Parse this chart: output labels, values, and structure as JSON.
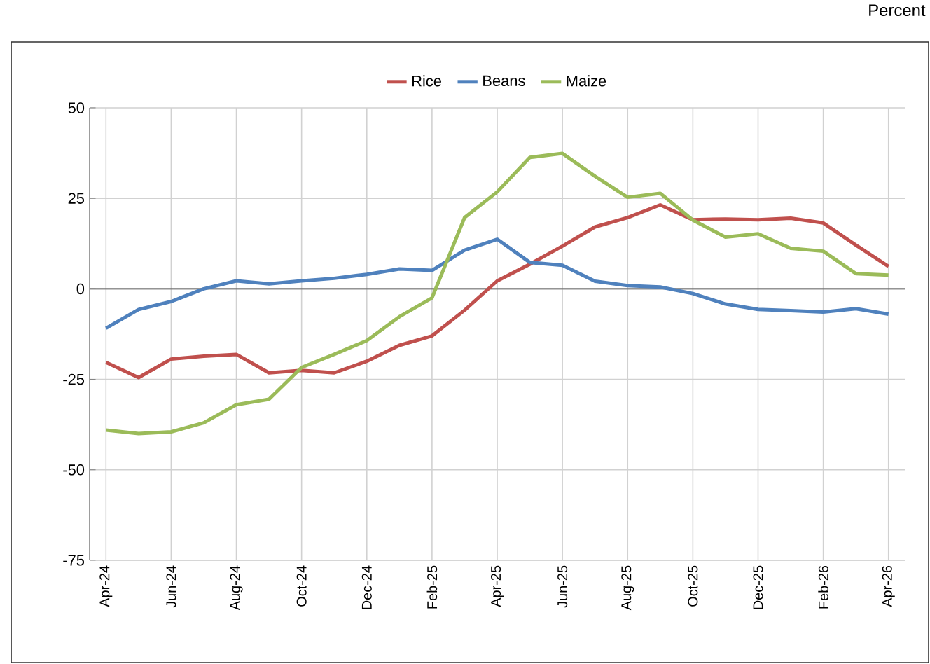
{
  "chart_data": {
    "type": "line",
    "annotations": [
      "Percent"
    ],
    "categories": [
      "Apr-24",
      null,
      "Jun-24",
      null,
      "Aug-24",
      null,
      "Oct-24",
      null,
      "Dec-24",
      null,
      "Feb-25",
      null,
      "Apr-25",
      null,
      "Jun-25",
      null,
      "Aug-25",
      null,
      "Oct-25",
      null,
      "Dec-25",
      null,
      "Feb-26",
      null,
      "Apr-26"
    ],
    "series": [
      {
        "name": "Rice",
        "color": "#c0504d",
        "values": [
          -20.3,
          -24.5,
          -19.4,
          -18.6,
          -18.1,
          -23.2,
          -22.5,
          -23.2,
          -20.0,
          -15.6,
          -13.0,
          -5.9,
          2.2,
          6.8,
          11.8,
          17.1,
          19.7,
          23.2,
          19.1,
          19.3,
          19.1,
          19.5,
          18.2,
          12.1,
          6.2
        ]
      },
      {
        "name": "Beans",
        "color": "#4f81bd",
        "values": [
          -10.9,
          -5.7,
          -3.5,
          0.0,
          2.2,
          1.4,
          2.2,
          2.9,
          4.0,
          5.5,
          5.1,
          10.7,
          13.7,
          7.3,
          6.5,
          2.1,
          0.9,
          0.5,
          -1.3,
          -4.2,
          -5.7,
          -6.0,
          -6.4,
          -5.5,
          -7.0
        ]
      },
      {
        "name": "Maize",
        "color": "#9bbb59",
        "values": [
          -39.0,
          -40.0,
          -39.5,
          -37.0,
          -32.0,
          -30.5,
          -21.7,
          -18.1,
          -14.3,
          -7.7,
          -2.5,
          19.7,
          26.8,
          36.3,
          37.4,
          31.1,
          25.3,
          26.4,
          19.0,
          14.3,
          15.2,
          11.2,
          10.4,
          4.2,
          3.8
        ]
      }
    ],
    "ylim": [
      -75,
      50
    ],
    "yticks": [
      -75,
      -50,
      -25,
      0,
      25,
      50
    ],
    "grid": true,
    "legend": "top",
    "marker": "none",
    "line_style": "solid"
  }
}
